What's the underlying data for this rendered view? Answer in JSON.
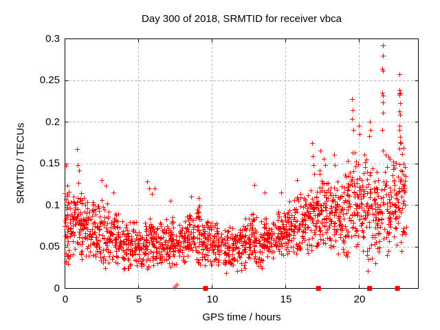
{
  "page": {
    "background": "#ffffff"
  },
  "chart_data": {
    "type": "scatter",
    "title": "Day 300 of 2018, SRMTID for receiver vbca",
    "xlabel": "GPS time / hours",
    "ylabel": "SRMTID / TECUs",
    "xlim": [
      0,
      24
    ],
    "ylim": [
      0,
      0.3
    ],
    "xticks": [
      0,
      5,
      10,
      15,
      20
    ],
    "yticks": [
      0,
      0.05,
      0.1,
      0.15,
      0.2,
      0.25,
      0.3
    ],
    "xtick_labels": [
      "0",
      "5",
      "10",
      "15",
      "20"
    ],
    "ytick_labels": [
      "0",
      "0.05",
      "0.1",
      "0.15",
      "0.2",
      "0.25",
      "0.3"
    ],
    "grid": true,
    "legend": "none",
    "grid_color": "#b0b0b0",
    "axis_color": "#000000",
    "series": [
      {
        "name": "srmtid-points",
        "marker": "plus",
        "color": "#ff0000",
        "seed": 7,
        "band_segments": [
          [
            0.0,
            0.3,
            35,
            0.072,
            0.026
          ],
          [
            0.3,
            0.8,
            40,
            0.075,
            0.02
          ],
          [
            0.8,
            1.2,
            40,
            0.082,
            0.024
          ],
          [
            1.2,
            1.7,
            40,
            0.072,
            0.02
          ],
          [
            1.7,
            2.2,
            40,
            0.066,
            0.019
          ],
          [
            2.2,
            2.7,
            40,
            0.066,
            0.02
          ],
          [
            2.7,
            3.2,
            40,
            0.063,
            0.021
          ],
          [
            3.2,
            3.7,
            40,
            0.059,
            0.019
          ],
          [
            3.7,
            4.2,
            38,
            0.055,
            0.017
          ],
          [
            4.2,
            4.7,
            38,
            0.052,
            0.016
          ],
          [
            4.7,
            5.2,
            38,
            0.051,
            0.016
          ],
          [
            5.2,
            5.7,
            38,
            0.053,
            0.018
          ],
          [
            5.7,
            6.2,
            38,
            0.057,
            0.019
          ],
          [
            6.2,
            6.7,
            38,
            0.056,
            0.017
          ],
          [
            6.7,
            7.2,
            38,
            0.055,
            0.016
          ],
          [
            7.2,
            7.7,
            38,
            0.054,
            0.015
          ],
          [
            7.7,
            8.2,
            38,
            0.057,
            0.016
          ],
          [
            8.2,
            8.7,
            40,
            0.062,
            0.017
          ],
          [
            8.7,
            9.2,
            40,
            0.065,
            0.018
          ],
          [
            9.2,
            9.7,
            40,
            0.062,
            0.017
          ],
          [
            9.7,
            10.2,
            38,
            0.057,
            0.016
          ],
          [
            10.2,
            10.7,
            38,
            0.052,
            0.015
          ],
          [
            10.7,
            11.2,
            38,
            0.049,
            0.015
          ],
          [
            11.2,
            11.7,
            38,
            0.049,
            0.015
          ],
          [
            11.7,
            12.2,
            38,
            0.052,
            0.015
          ],
          [
            12.2,
            12.7,
            38,
            0.056,
            0.016
          ],
          [
            12.7,
            13.2,
            38,
            0.057,
            0.017
          ],
          [
            13.2,
            13.7,
            38,
            0.056,
            0.017
          ],
          [
            13.7,
            14.2,
            38,
            0.06,
            0.016
          ],
          [
            14.2,
            14.7,
            38,
            0.063,
            0.016
          ],
          [
            14.7,
            15.2,
            40,
            0.068,
            0.017
          ],
          [
            15.2,
            15.7,
            40,
            0.071,
            0.018
          ],
          [
            15.7,
            16.2,
            40,
            0.077,
            0.02
          ],
          [
            16.2,
            16.7,
            40,
            0.082,
            0.022
          ],
          [
            16.7,
            17.2,
            42,
            0.092,
            0.026
          ],
          [
            17.2,
            17.7,
            42,
            0.096,
            0.026
          ],
          [
            17.7,
            18.2,
            40,
            0.092,
            0.026
          ],
          [
            18.2,
            18.7,
            38,
            0.086,
            0.025
          ],
          [
            18.7,
            19.2,
            38,
            0.088,
            0.028
          ],
          [
            19.2,
            19.7,
            42,
            0.103,
            0.034
          ],
          [
            19.7,
            20.2,
            42,
            0.104,
            0.034
          ],
          [
            20.2,
            20.7,
            40,
            0.102,
            0.032
          ],
          [
            20.7,
            21.2,
            40,
            0.095,
            0.03
          ],
          [
            21.2,
            21.7,
            36,
            0.082,
            0.024
          ],
          [
            21.7,
            22.2,
            38,
            0.096,
            0.032
          ],
          [
            22.2,
            22.7,
            38,
            0.103,
            0.033
          ],
          [
            22.7,
            23.2,
            40,
            0.108,
            0.035
          ]
        ],
        "outlier_points": [
          [
            0.08,
            0.147
          ],
          [
            0.85,
            0.167
          ],
          [
            0.9,
            0.148
          ],
          [
            1.0,
            0.141
          ],
          [
            2.5,
            0.13
          ],
          [
            2.8,
            0.123
          ],
          [
            3.3,
            0.115
          ],
          [
            5.6,
            0.128
          ],
          [
            5.75,
            0.12
          ],
          [
            5.95,
            0.113
          ],
          [
            6.1,
            0.12
          ],
          [
            7.2,
            0.105
          ],
          [
            7.48,
            0.002
          ],
          [
            7.62,
            0.004
          ],
          [
            8.6,
            0.11
          ],
          [
            9.1,
            0.108
          ],
          [
            12.9,
            0.124
          ],
          [
            13.6,
            0.115
          ],
          [
            14.7,
            0.115
          ],
          [
            15.8,
            0.13
          ],
          [
            16.8,
            0.174
          ],
          [
            16.85,
            0.159
          ],
          [
            16.9,
            0.148
          ],
          [
            17.35,
            0.165
          ],
          [
            17.6,
            0.155
          ],
          [
            17.7,
            0.148
          ],
          [
            18.3,
            0.16
          ],
          [
            18.35,
            0.148
          ],
          [
            19.5,
            0.227
          ],
          [
            19.55,
            0.214
          ],
          [
            19.5,
            0.203
          ],
          [
            19.6,
            0.19
          ],
          [
            20.0,
            0.195
          ],
          [
            20.05,
            0.185
          ],
          [
            20.6,
            0.021
          ],
          [
            20.65,
            0.035
          ],
          [
            20.75,
            0.2
          ],
          [
            20.8,
            0.19
          ],
          [
            20.7,
            0.183
          ],
          [
            21.2,
            0.14
          ],
          [
            21.3,
            0.13
          ],
          [
            21.1,
            0.03
          ],
          [
            21.6,
            0.292
          ],
          [
            21.6,
            0.279
          ],
          [
            21.58,
            0.264
          ],
          [
            21.62,
            0.261
          ],
          [
            21.59,
            0.235
          ],
          [
            21.61,
            0.231
          ],
          [
            21.6,
            0.223
          ],
          [
            21.63,
            0.211
          ],
          [
            21.57,
            0.19
          ],
          [
            21.6,
            0.165
          ],
          [
            21.8,
            0.16
          ],
          [
            22.0,
            0.158
          ],
          [
            22.1,
            0.155
          ],
          [
            22.3,
            0.152
          ],
          [
            22.76,
            0.257
          ],
          [
            22.74,
            0.238
          ],
          [
            22.78,
            0.235
          ],
          [
            22.76,
            0.234
          ],
          [
            22.75,
            0.232
          ],
          [
            22.77,
            0.222
          ],
          [
            22.74,
            0.212
          ],
          [
            22.79,
            0.208
          ],
          [
            22.76,
            0.195
          ],
          [
            22.73,
            0.19
          ],
          [
            22.8,
            0.182
          ],
          [
            22.77,
            0.175
          ],
          [
            22.75,
            0.168
          ],
          [
            23.0,
            0.15
          ],
          [
            23.05,
            0.12
          ],
          [
            23.1,
            0.1
          ],
          [
            22.9,
            0.045
          ],
          [
            21.9,
            0.04
          ],
          [
            20.55,
            0.04
          ]
        ]
      },
      {
        "name": "axis-squares",
        "marker": "filled-square",
        "color": "#ff0000",
        "points": [
          [
            9.55,
            0
          ],
          [
            17.22,
            0
          ],
          [
            20.69,
            0
          ],
          [
            22.58,
            0
          ]
        ]
      }
    ]
  }
}
